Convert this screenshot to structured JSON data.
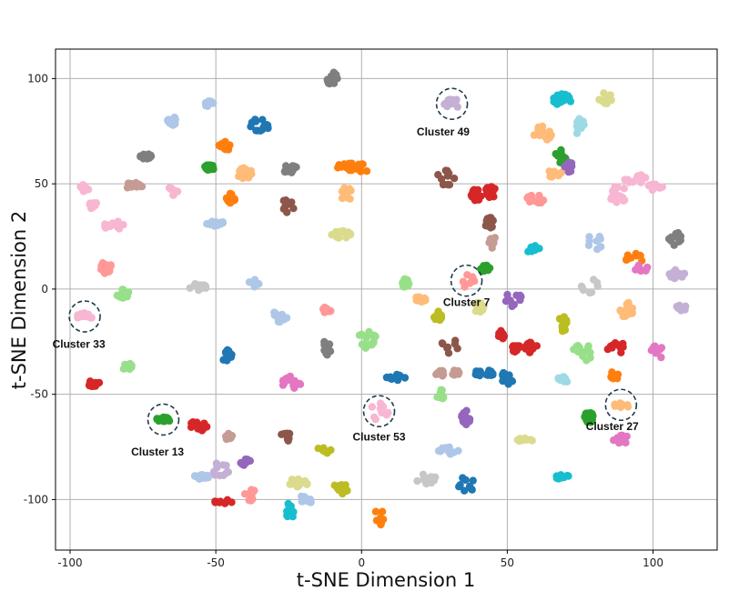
{
  "chart_data": {
    "type": "scatter",
    "title": "",
    "xlabel": "t-SNE Dimension 1",
    "ylabel": "t-SNE Dimension 2",
    "xlim": [
      -105,
      122
    ],
    "ylim": [
      -124,
      114
    ],
    "xticks": [
      -100,
      -50,
      0,
      50,
      100
    ],
    "yticks": [
      -100,
      -50,
      0,
      50,
      100
    ],
    "grid": true,
    "clusters": [
      {
        "x": -10,
        "y": 100,
        "color": "#7f7f7f"
      },
      {
        "x": -52,
        "y": 88,
        "color": "#aec7e8"
      },
      {
        "x": -65,
        "y": 80,
        "color": "#aec7e8"
      },
      {
        "x": -35,
        "y": 78,
        "color": "#1f77b4"
      },
      {
        "x": -74,
        "y": 63,
        "color": "#7f7f7f"
      },
      {
        "x": -47,
        "y": 68,
        "color": "#ff7f0e"
      },
      {
        "x": -52,
        "y": 58,
        "color": "#2ca02c"
      },
      {
        "x": -40,
        "y": 55,
        "color": "#ffbb78"
      },
      {
        "x": -25,
        "y": 57,
        "color": "#7f7f7f"
      },
      {
        "x": 0,
        "y": 57,
        "color": "#ff7f0e"
      },
      {
        "x": -5,
        "y": 58,
        "color": "#ff7f0e"
      },
      {
        "x": -78,
        "y": 49,
        "color": "#c49c94"
      },
      {
        "x": -95,
        "y": 48,
        "color": "#f7b6d2"
      },
      {
        "x": -92,
        "y": 40,
        "color": "#f7b6d2"
      },
      {
        "x": -85,
        "y": 30,
        "color": "#f7b6d2"
      },
      {
        "x": -65,
        "y": 46,
        "color": "#f7b6d2"
      },
      {
        "x": -45,
        "y": 43,
        "color": "#ff7f0e"
      },
      {
        "x": -25,
        "y": 40,
        "color": "#8c564b"
      },
      {
        "x": -5,
        "y": 45,
        "color": "#ffbb78"
      },
      {
        "x": -50,
        "y": 31,
        "color": "#aec7e8"
      },
      {
        "x": -7,
        "y": 26,
        "color": "#dbdb8d"
      },
      {
        "x": -88,
        "y": 10,
        "color": "#ff9896"
      },
      {
        "x": -82,
        "y": -2,
        "color": "#98df8a"
      },
      {
        "x": -56,
        "y": 0,
        "color": "#c7c7c7"
      },
      {
        "x": -37,
        "y": 3,
        "color": "#aec7e8"
      },
      {
        "x": -28,
        "y": -13,
        "color": "#aec7e8"
      },
      {
        "x": -12,
        "y": -10,
        "color": "#ff9896"
      },
      {
        "x": -95,
        "y": -13,
        "color": "#f7b6d2"
      },
      {
        "x": -80,
        "y": -37,
        "color": "#98df8a"
      },
      {
        "x": -92,
        "y": -45,
        "color": "#d62728"
      },
      {
        "x": -46,
        "y": -32,
        "color": "#1f77b4"
      },
      {
        "x": -12,
        "y": -28,
        "color": "#7f7f7f"
      },
      {
        "x": 2,
        "y": -24,
        "color": "#98df8a"
      },
      {
        "x": -24,
        "y": -44,
        "color": "#e377c2"
      },
      {
        "x": -68,
        "y": -62,
        "color": "#2ca02c"
      },
      {
        "x": -56,
        "y": -65,
        "color": "#d62728"
      },
      {
        "x": -46,
        "y": -70,
        "color": "#c49c94"
      },
      {
        "x": -40,
        "y": -82,
        "color": "#9467bd"
      },
      {
        "x": -48,
        "y": -86,
        "color": "#c5b0d5"
      },
      {
        "x": -26,
        "y": -70,
        "color": "#8c564b"
      },
      {
        "x": -13,
        "y": -77,
        "color": "#bcbd22"
      },
      {
        "x": -55,
        "y": -89,
        "color": "#aec7e8"
      },
      {
        "x": -22,
        "y": -92,
        "color": "#dbdb8d"
      },
      {
        "x": -8,
        "y": -95,
        "color": "#bcbd22"
      },
      {
        "x": -48,
        "y": -101,
        "color": "#d62728"
      },
      {
        "x": -38,
        "y": -98,
        "color": "#ff9896"
      },
      {
        "x": -25,
        "y": -106,
        "color": "#17becf"
      },
      {
        "x": -19,
        "y": -100,
        "color": "#aec7e8"
      },
      {
        "x": 6,
        "y": -108,
        "color": "#ff7f0e"
      },
      {
        "x": 31,
        "y": 88,
        "color": "#c5b0d5"
      },
      {
        "x": 29,
        "y": 53,
        "color": "#8c564b"
      },
      {
        "x": 39,
        "y": 44,
        "color": "#d62728"
      },
      {
        "x": 44,
        "y": 46,
        "color": "#d62728"
      },
      {
        "x": 44,
        "y": 32,
        "color": "#8c564b"
      },
      {
        "x": 42,
        "y": 10,
        "color": "#2ca02c"
      },
      {
        "x": 45,
        "y": 23,
        "color": "#c49c94"
      },
      {
        "x": 36,
        "y": 4,
        "color": "#ff9896"
      },
      {
        "x": 40,
        "y": -9,
        "color": "#dbdb8d"
      },
      {
        "x": 26,
        "y": -13,
        "color": "#bcbd22"
      },
      {
        "x": 20,
        "y": -5,
        "color": "#ffbb78"
      },
      {
        "x": 15,
        "y": 3,
        "color": "#98df8a"
      },
      {
        "x": 30,
        "y": -27,
        "color": "#8c564b"
      },
      {
        "x": 48,
        "y": -22,
        "color": "#d62728"
      },
      {
        "x": 53,
        "y": -28,
        "color": "#d62728"
      },
      {
        "x": 58,
        "y": -28,
        "color": "#d62728"
      },
      {
        "x": 52,
        "y": -5,
        "color": "#9467bd"
      },
      {
        "x": 12,
        "y": -42,
        "color": "#1f77b4"
      },
      {
        "x": 27,
        "y": -40,
        "color": "#c49c94"
      },
      {
        "x": 33,
        "y": -40,
        "color": "#c49c94"
      },
      {
        "x": 42,
        "y": -40,
        "color": "#1f77b4"
      },
      {
        "x": 50,
        "y": -42,
        "color": "#1f77b4"
      },
      {
        "x": 27,
        "y": -50,
        "color": "#98df8a"
      },
      {
        "x": 6,
        "y": -58,
        "color": "#f7b6d2"
      },
      {
        "x": 36,
        "y": -61,
        "color": "#9467bd"
      },
      {
        "x": 56,
        "y": -72,
        "color": "#dbdb8d"
      },
      {
        "x": 30,
        "y": -77,
        "color": "#aec7e8"
      },
      {
        "x": 22,
        "y": -90,
        "color": "#c7c7c7"
      },
      {
        "x": 36,
        "y": -93,
        "color": "#1f77b4"
      },
      {
        "x": 69,
        "y": 90,
        "color": "#17becf"
      },
      {
        "x": 84,
        "y": 91,
        "color": "#dbdb8d"
      },
      {
        "x": 62,
        "y": 74,
        "color": "#ffbb78"
      },
      {
        "x": 75,
        "y": 77,
        "color": "#9edae5"
      },
      {
        "x": 68,
        "y": 63,
        "color": "#2ca02c"
      },
      {
        "x": 65,
        "y": 55,
        "color": "#ffbb78"
      },
      {
        "x": 71,
        "y": 58,
        "color": "#9467bd"
      },
      {
        "x": 60,
        "y": 43,
        "color": "#ff9896"
      },
      {
        "x": 94,
        "y": 52,
        "color": "#f7b6d2"
      },
      {
        "x": 100,
        "y": 48,
        "color": "#f7b6d2"
      },
      {
        "x": 88,
        "y": 45,
        "color": "#f7b6d2"
      },
      {
        "x": 59,
        "y": 19,
        "color": "#17becf"
      },
      {
        "x": 80,
        "y": 22,
        "color": "#aec7e8"
      },
      {
        "x": 93,
        "y": 14,
        "color": "#ff7f0e"
      },
      {
        "x": 96,
        "y": 10,
        "color": "#e377c2"
      },
      {
        "x": 107,
        "y": 24,
        "color": "#7f7f7f"
      },
      {
        "x": 108,
        "y": 7,
        "color": "#c5b0d5"
      },
      {
        "x": 78,
        "y": 2,
        "color": "#c7c7c7"
      },
      {
        "x": 91,
        "y": -10,
        "color": "#ffbb78"
      },
      {
        "x": 110,
        "y": -8,
        "color": "#c5b0d5"
      },
      {
        "x": 69,
        "y": -17,
        "color": "#bcbd22"
      },
      {
        "x": 76,
        "y": -30,
        "color": "#98df8a"
      },
      {
        "x": 87,
        "y": -28,
        "color": "#d62728"
      },
      {
        "x": 102,
        "y": -30,
        "color": "#e377c2"
      },
      {
        "x": 69,
        "y": -43,
        "color": "#9edae5"
      },
      {
        "x": 87,
        "y": -41,
        "color": "#ff7f0e"
      },
      {
        "x": 89,
        "y": -55,
        "color": "#ffbb78"
      },
      {
        "x": 78,
        "y": -61,
        "color": "#2ca02c"
      },
      {
        "x": 89,
        "y": -72,
        "color": "#e377c2"
      },
      {
        "x": 69,
        "y": -89,
        "color": "#17becf"
      }
    ],
    "annotations": [
      {
        "label": "Cluster 49",
        "x": 31,
        "y": 88,
        "label_x": 28,
        "label_y": 73
      },
      {
        "label": "Cluster 7",
        "x": 36,
        "y": 4,
        "label_x": 36,
        "label_y": -8
      },
      {
        "label": "Cluster 33",
        "x": -95,
        "y": -13,
        "label_x": -97,
        "label_y": -28
      },
      {
        "label": "Cluster 13",
        "x": -68,
        "y": -62,
        "label_x": -70,
        "label_y": -79
      },
      {
        "label": "Cluster 53",
        "x": 6,
        "y": -58,
        "label_x": 6,
        "label_y": -72
      },
      {
        "label": "Cluster 27",
        "x": 89,
        "y": -55,
        "label_x": 86,
        "label_y": -67
      }
    ]
  }
}
